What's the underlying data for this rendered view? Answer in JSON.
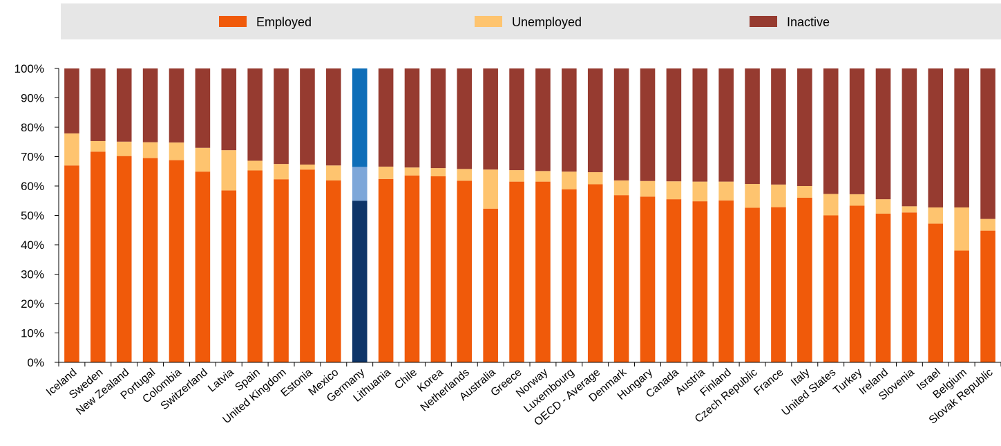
{
  "chart_data": {
    "type": "bar",
    "stacked": true,
    "orientation": "vertical",
    "legend_position": "top",
    "grid": false,
    "ylim": [
      0,
      100
    ],
    "y_ticks": [
      "0%",
      "10%",
      "20%",
      "30%",
      "40%",
      "50%",
      "60%",
      "70%",
      "80%",
      "90%",
      "100%"
    ],
    "categories": [
      "Iceland",
      "Sweden",
      "New Zealand",
      "Portugal",
      "Colombia",
      "Switzerland",
      "Latvia",
      "Spain",
      "United Kingdom",
      "Estonia",
      "Mexico",
      "Germany",
      "Lithuania",
      "Chile",
      "Korea",
      "Netherlands",
      "Australia",
      "Greece",
      "Norway",
      "Luxembourg",
      "OECD - Average",
      "Denmark",
      "Hungary",
      "Canada",
      "Austria",
      "Finland",
      "Czech Republic",
      "France",
      "Italy",
      "United States",
      "Turkey",
      "Ireland",
      "Slovenia",
      "Israel",
      "Belgium",
      "Slovak Republic"
    ],
    "highlight_category": "Germany",
    "series": [
      {
        "name": "Employed",
        "color": "#f05a0a",
        "highlight_color": "#0e3569",
        "values": [
          67.0,
          71.7,
          70.2,
          69.5,
          68.8,
          64.9,
          58.5,
          65.3,
          62.3,
          65.6,
          61.9,
          55.0,
          62.4,
          63.6,
          63.3,
          61.8,
          52.3,
          61.5,
          61.5,
          58.9,
          60.6,
          56.9,
          56.4,
          55.5,
          54.8,
          55.1,
          52.6,
          52.8,
          56.0,
          50.0,
          53.3,
          50.6,
          51.0,
          47.2,
          38.0,
          44.8
        ]
      },
      {
        "name": "Unemployed",
        "color": "#fec46f",
        "highlight_color": "#7da7d9",
        "values": [
          10.9,
          3.6,
          4.9,
          5.4,
          6.0,
          8.1,
          13.7,
          3.3,
          5.2,
          1.7,
          5.1,
          11.5,
          4.2,
          2.7,
          2.8,
          4.0,
          13.3,
          3.9,
          3.6,
          6.0,
          4.1,
          5.0,
          5.3,
          6.1,
          6.7,
          6.4,
          8.1,
          7.7,
          4.0,
          7.3,
          3.9,
          4.9,
          2.1,
          5.5,
          14.7,
          4.0
        ]
      },
      {
        "name": "Inactive",
        "color": "#963b30",
        "highlight_color": "#0e6eb8",
        "values": [
          22.1,
          24.7,
          24.9,
          25.1,
          25.2,
          27.0,
          27.8,
          31.4,
          32.5,
          32.7,
          33.0,
          33.5,
          33.4,
          33.7,
          33.9,
          34.2,
          34.4,
          34.6,
          34.9,
          35.1,
          35.3,
          38.1,
          38.3,
          38.4,
          38.5,
          38.5,
          39.3,
          39.5,
          40.0,
          42.7,
          42.8,
          44.5,
          46.9,
          47.3,
          47.3,
          51.2
        ]
      }
    ]
  }
}
